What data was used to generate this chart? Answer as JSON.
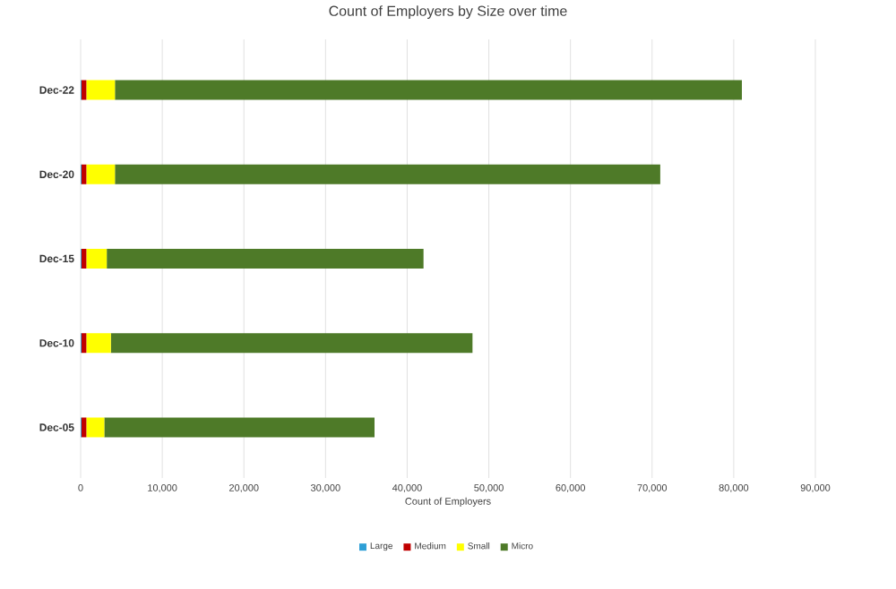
{
  "chart_data": {
    "type": "bar",
    "orientation": "horizontal",
    "stacked": true,
    "title": "Count of Employers by Size over time",
    "xlabel": "Count of Employers",
    "categories": [
      "Dec-22",
      "Dec-20",
      "Dec-15",
      "Dec-10",
      "Dec-05"
    ],
    "series": [
      {
        "name": "Large",
        "color": "#2e9fd6",
        "values": [
          100,
          100,
          100,
          100,
          100
        ]
      },
      {
        "name": "Medium",
        "color": "#c00000",
        "values": [
          600,
          600,
          600,
          600,
          600
        ]
      },
      {
        "name": "Small",
        "color": "#ffff00",
        "values": [
          3500,
          3500,
          2500,
          3000,
          2200
        ]
      },
      {
        "name": "Micro",
        "color": "#4e7a28",
        "values": [
          76800,
          66800,
          38800,
          44300,
          33100
        ]
      }
    ],
    "xlim": [
      0,
      90000
    ],
    "xticks": [
      0,
      {
        "value": 10000,
        "label": "10,000"
      },
      {
        "value": 20000,
        "label": "20,000"
      },
      {
        "value": 30000,
        "label": "30,000"
      },
      {
        "value": 40000,
        "label": "40,000"
      },
      {
        "value": 50000,
        "label": "50,000"
      },
      {
        "value": 60000,
        "label": "60,000"
      },
      {
        "value": 70000,
        "label": "70,000"
      },
      {
        "value": 80000,
        "label": "80,000"
      },
      {
        "value": 90000,
        "label": "90,000"
      }
    ],
    "grid": "x",
    "legend": "bottom"
  }
}
